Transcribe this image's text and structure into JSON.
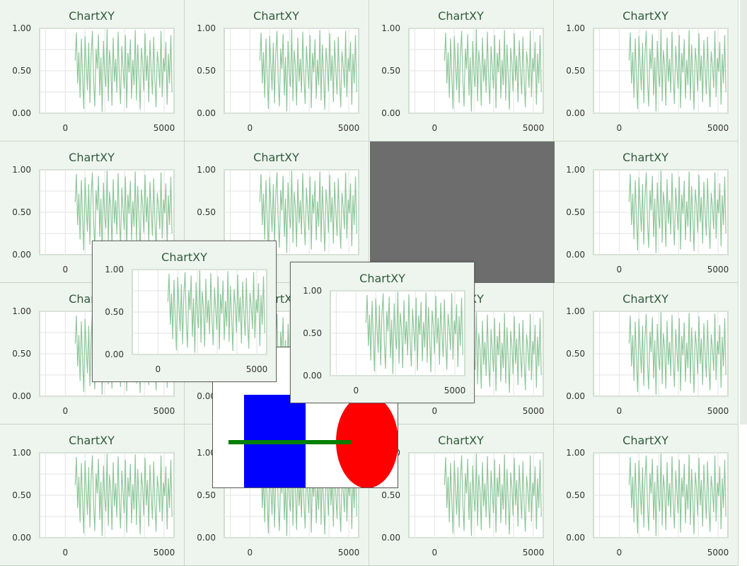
{
  "chart_title": "ChartXY",
  "chart_data": {
    "type": "line",
    "title": "ChartXY",
    "xlabel": "",
    "ylabel": "",
    "x_ticks": [
      "0",
      "5000"
    ],
    "y_ticks": [
      "0.00",
      "0.50",
      "1.00"
    ],
    "ylim": [
      0,
      1
    ],
    "xlim": [
      -1300,
      5500
    ],
    "grid": true,
    "series": [
      {
        "color": "#8fc79a",
        "x_start": 500,
        "x_end": 5400,
        "values": [
          0.62,
          0.95,
          0.35,
          0.72,
          0.18,
          0.88,
          0.44,
          0.05,
          0.91,
          0.58,
          0.27,
          0.83,
          0.12,
          0.69,
          0.97,
          0.39,
          0.08,
          0.76,
          0.52,
          0.93,
          0.21,
          0.66,
          0.02,
          0.85,
          0.47,
          0.31,
          0.99,
          0.14,
          0.74,
          0.56,
          0.09,
          0.89,
          0.37,
          0.64,
          0.24,
          0.96,
          0.42,
          0.11,
          0.79,
          0.53,
          0.29,
          0.92,
          0.06,
          0.71,
          0.48,
          0.87,
          0.17,
          0.63,
          0.33,
          0.98,
          0.15,
          0.81,
          0.45,
          0.04,
          0.77,
          0.59,
          0.26,
          0.94,
          0.38,
          0.68,
          0.13,
          0.86,
          0.51,
          0.22,
          0.9,
          0.41,
          0.07,
          0.73,
          0.57,
          0.3,
          0.97,
          0.19,
          0.65,
          0.49,
          0.84,
          0.1,
          0.7,
          0.35,
          0.92,
          0.25
        ]
      }
    ]
  },
  "shapes": {
    "rect_color": "#0000ff",
    "ellipse_color": "#ff0000",
    "line_color": "#008000"
  },
  "colors": {
    "card_bg": "#eef5ee",
    "plot_bg": "#ffffff",
    "grid": "#e3e3e3",
    "axis": "#cfe0cf",
    "empty_slot": "#6d6d6d"
  }
}
